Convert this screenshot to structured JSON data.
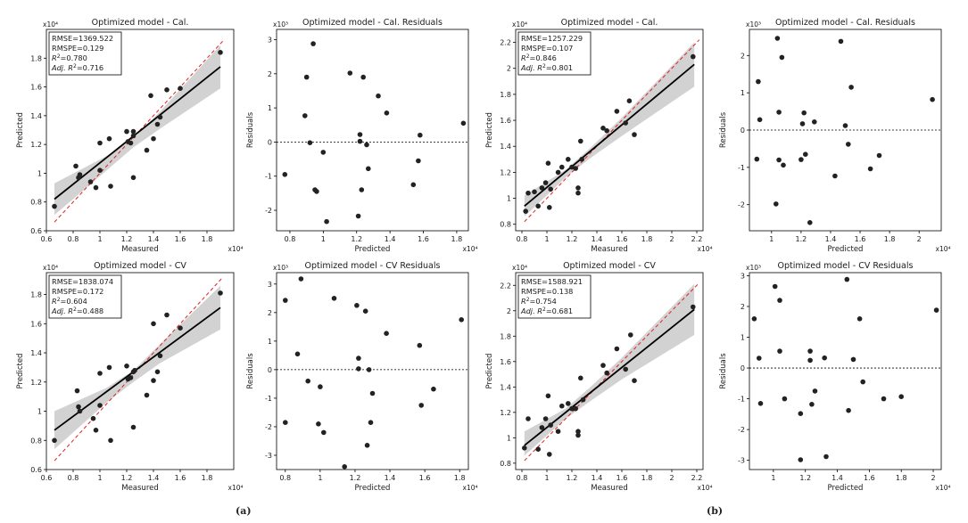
{
  "panel_labels": [
    "(a)",
    "(b)"
  ],
  "chart_data": [
    {
      "type": "scatter",
      "kind": "fit",
      "title": "Optimized model - Cal.",
      "xlabel": "Measured",
      "ylabel": "Predicted",
      "x_multiplier": "x10⁴",
      "y_multiplier": "x10⁴",
      "xlim": [
        0.6,
        2.0
      ],
      "ylim": [
        0.6,
        2.0
      ],
      "xticks": [
        0.6,
        0.8,
        1.0,
        1.2,
        1.4,
        1.6,
        1.8
      ],
      "yticks": [
        0.6,
        0.8,
        1.0,
        1.2,
        1.4,
        1.6,
        1.8
      ],
      "stats": [
        "RMSE=1369.522",
        "RMSPE=0.129",
        "R²=0.780",
        "Adj. R²=0.716"
      ],
      "fit_line": [
        [
          0.66,
          0.82
        ],
        [
          1.9,
          1.74
        ]
      ],
      "identity_line": [
        [
          0.66,
          0.66
        ],
        [
          1.92,
          1.92
        ]
      ],
      "band": {
        "x": [
          0.66,
          1.05,
          1.25,
          1.45,
          1.9
        ],
        "lower": [
          0.71,
          1.02,
          1.18,
          1.31,
          1.59
        ],
        "upper": [
          0.93,
          1.12,
          1.24,
          1.43,
          1.89
        ]
      },
      "points": [
        [
          0.66,
          0.77
        ],
        [
          0.82,
          1.05
        ],
        [
          0.84,
          0.97
        ],
        [
          0.85,
          0.99
        ],
        [
          0.93,
          0.94
        ],
        [
          0.97,
          0.9
        ],
        [
          1.0,
          1.02
        ],
        [
          1.0,
          1.21
        ],
        [
          1.07,
          1.24
        ],
        [
          1.08,
          0.91
        ],
        [
          1.2,
          1.29
        ],
        [
          1.21,
          1.22
        ],
        [
          1.23,
          1.21
        ],
        [
          1.25,
          0.97
        ],
        [
          1.25,
          1.26
        ],
        [
          1.25,
          1.29
        ],
        [
          1.35,
          1.16
        ],
        [
          1.38,
          1.54
        ],
        [
          1.4,
          1.24
        ],
        [
          1.43,
          1.34
        ],
        [
          1.45,
          1.39
        ],
        [
          1.5,
          1.58
        ],
        [
          1.6,
          1.59
        ],
        [
          1.9,
          1.84
        ]
      ]
    },
    {
      "type": "scatter",
      "kind": "residual",
      "title": "Optimized model - Cal. Residuals",
      "xlabel": "Predicted",
      "ylabel": "Residuals",
      "x_multiplier": "x10⁴",
      "y_multiplier": "x10³",
      "xlim": [
        0.72,
        1.87
      ],
      "ylim": [
        -2.6,
        3.3
      ],
      "xticks": [
        0.8,
        1.0,
        1.2,
        1.4,
        1.6,
        1.8
      ],
      "yticks": [
        -2,
        -1,
        0,
        1,
        2,
        3
      ],
      "points": [
        [
          0.77,
          -0.95
        ],
        [
          0.89,
          0.77
        ],
        [
          0.9,
          1.9
        ],
        [
          0.92,
          -0.02
        ],
        [
          0.94,
          2.88
        ],
        [
          0.95,
          -1.4
        ],
        [
          0.96,
          -1.45
        ],
        [
          1.0,
          -0.3
        ],
        [
          1.02,
          -2.33
        ],
        [
          1.16,
          2.02
        ],
        [
          1.21,
          -2.17
        ],
        [
          1.22,
          0.02
        ],
        [
          1.22,
          0.22
        ],
        [
          1.23,
          -1.4
        ],
        [
          1.24,
          1.9
        ],
        [
          1.26,
          -0.08
        ],
        [
          1.27,
          -0.78
        ],
        [
          1.33,
          1.35
        ],
        [
          1.38,
          0.85
        ],
        [
          1.54,
          -1.25
        ],
        [
          1.57,
          -0.55
        ],
        [
          1.58,
          0.2
        ],
        [
          1.84,
          0.55
        ]
      ]
    },
    {
      "type": "scatter",
      "kind": "fit",
      "title": "Optimized model - Cal.",
      "xlabel": "Measured",
      "ylabel": "Predicted",
      "x_multiplier": "x10⁴",
      "y_multiplier": "x10⁴",
      "xlim": [
        0.75,
        2.25
      ],
      "ylim": [
        0.75,
        2.3
      ],
      "xticks": [
        0.8,
        1.0,
        1.2,
        1.4,
        1.6,
        1.8,
        2.0,
        2.2
      ],
      "yticks": [
        0.8,
        1.0,
        1.2,
        1.4,
        1.6,
        1.8,
        2.0,
        2.2
      ],
      "stats": [
        "RMSE=1257.229",
        "RMSPE=0.107",
        "R²=0.846",
        "Adj. R²=0.801"
      ],
      "fit_line": [
        [
          0.82,
          0.94
        ],
        [
          2.18,
          2.03
        ]
      ],
      "identity_line": [
        [
          0.82,
          0.82
        ],
        [
          2.22,
          2.22
        ]
      ],
      "band": {
        "x": [
          0.82,
          1.15,
          1.35,
          1.6,
          2.18
        ],
        "lower": [
          0.86,
          1.16,
          1.31,
          1.48,
          1.86
        ],
        "upper": [
          1.02,
          1.22,
          1.39,
          1.62,
          2.2
        ]
      },
      "points": [
        [
          0.83,
          0.9
        ],
        [
          0.85,
          1.04
        ],
        [
          0.9,
          1.05
        ],
        [
          0.93,
          0.94
        ],
        [
          0.96,
          1.08
        ],
        [
          0.99,
          1.12
        ],
        [
          1.01,
          1.27
        ],
        [
          1.02,
          0.93
        ],
        [
          1.03,
          1.07
        ],
        [
          1.09,
          1.2
        ],
        [
          1.12,
          1.24
        ],
        [
          1.17,
          1.3
        ],
        [
          1.2,
          1.24
        ],
        [
          1.23,
          1.23
        ],
        [
          1.25,
          1.04
        ],
        [
          1.25,
          1.08
        ],
        [
          1.27,
          1.44
        ],
        [
          1.28,
          1.3
        ],
        [
          1.45,
          1.54
        ],
        [
          1.48,
          1.52
        ],
        [
          1.56,
          1.67
        ],
        [
          1.63,
          1.58
        ],
        [
          1.66,
          1.75
        ],
        [
          1.7,
          1.49
        ],
        [
          2.17,
          2.09
        ]
      ]
    },
    {
      "type": "scatter",
      "kind": "residual",
      "title": "Optimized model - Cal. Residuals",
      "xlabel": "Predicted",
      "ylabel": "Residuals",
      "x_multiplier": "x10⁴",
      "y_multiplier": "x10³",
      "xlim": [
        0.85,
        2.15
      ],
      "ylim": [
        -2.7,
        2.7
      ],
      "xticks": [
        1.0,
        1.2,
        1.4,
        1.6,
        1.8,
        2.0
      ],
      "yticks": [
        -2,
        -1,
        0,
        1,
        2
      ],
      "points": [
        [
          0.9,
          -0.78
        ],
        [
          0.91,
          1.3
        ],
        [
          0.92,
          0.28
        ],
        [
          1.03,
          -1.98
        ],
        [
          1.04,
          2.46
        ],
        [
          1.05,
          0.48
        ],
        [
          1.05,
          -0.8
        ],
        [
          1.07,
          1.95
        ],
        [
          1.08,
          -0.94
        ],
        [
          1.2,
          -0.79
        ],
        [
          1.21,
          0.17
        ],
        [
          1.22,
          0.46
        ],
        [
          1.23,
          -0.65
        ],
        [
          1.26,
          -2.48
        ],
        [
          1.29,
          0.22
        ],
        [
          1.43,
          -1.23
        ],
        [
          1.47,
          2.38
        ],
        [
          1.5,
          0.12
        ],
        [
          1.52,
          -0.38
        ],
        [
          1.54,
          1.15
        ],
        [
          1.67,
          -1.04
        ],
        [
          1.73,
          -0.68
        ],
        [
          2.09,
          0.82
        ]
      ]
    },
    {
      "type": "scatter",
      "kind": "fit",
      "title": "Optimized model - CV",
      "xlabel": "Measured",
      "ylabel": "Predicted",
      "x_multiplier": "x10⁴",
      "y_multiplier": "x10⁴",
      "xlim": [
        0.6,
        2.0
      ],
      "ylim": [
        0.6,
        1.95
      ],
      "xticks": [
        0.6,
        0.8,
        1.0,
        1.2,
        1.4,
        1.6,
        1.8
      ],
      "yticks": [
        0.6,
        0.8,
        1.0,
        1.2,
        1.4,
        1.6,
        1.8
      ],
      "stats": [
        "RMSE=1838.074",
        "RMSPE=0.172",
        "R²=0.604",
        "Adj. R²=0.488"
      ],
      "fit_line": [
        [
          0.66,
          0.87
        ],
        [
          1.9,
          1.71
        ]
      ],
      "identity_line": [
        [
          0.66,
          0.66
        ],
        [
          1.92,
          1.92
        ]
      ],
      "band": {
        "x": [
          0.66,
          1.05,
          1.25,
          1.45,
          1.9
        ],
        "lower": [
          0.74,
          1.06,
          1.2,
          1.33,
          1.56
        ],
        "upper": [
          1.0,
          1.16,
          1.28,
          1.46,
          1.86
        ]
      },
      "points": [
        [
          0.66,
          0.8
        ],
        [
          0.83,
          1.14
        ],
        [
          0.84,
          1.03
        ],
        [
          0.85,
          1.0
        ],
        [
          0.95,
          0.95
        ],
        [
          0.97,
          0.87
        ],
        [
          1.0,
          1.04
        ],
        [
          1.0,
          1.26
        ],
        [
          1.07,
          1.3
        ],
        [
          1.08,
          0.8
        ],
        [
          1.2,
          1.31
        ],
        [
          1.21,
          1.22
        ],
        [
          1.23,
          1.23
        ],
        [
          1.25,
          0.89
        ],
        [
          1.25,
          1.27
        ],
        [
          1.26,
          1.28
        ],
        [
          1.35,
          1.11
        ],
        [
          1.4,
          1.6
        ],
        [
          1.4,
          1.21
        ],
        [
          1.43,
          1.27
        ],
        [
          1.45,
          1.38
        ],
        [
          1.5,
          1.66
        ],
        [
          1.6,
          1.57
        ],
        [
          1.9,
          1.81
        ]
      ]
    },
    {
      "type": "scatter",
      "kind": "residual",
      "title": "Optimized model - CV Residuals",
      "xlabel": "Predicted",
      "ylabel": "Residuals",
      "x_multiplier": "x10⁴",
      "y_multiplier": "x10³",
      "xlim": [
        0.75,
        1.85
      ],
      "ylim": [
        -3.5,
        3.4
      ],
      "xticks": [
        0.8,
        1.0,
        1.2,
        1.4,
        1.6,
        1.8
      ],
      "yticks": [
        -3,
        -2,
        -1,
        0,
        1,
        2,
        3
      ],
      "points": [
        [
          0.8,
          2.43
        ],
        [
          0.8,
          -1.85
        ],
        [
          0.87,
          0.55
        ],
        [
          0.89,
          3.18
        ],
        [
          0.93,
          -0.4
        ],
        [
          0.99,
          -1.9
        ],
        [
          1.0,
          -0.6
        ],
        [
          1.02,
          -2.2
        ],
        [
          1.08,
          2.5
        ],
        [
          1.14,
          -3.4
        ],
        [
          1.21,
          2.25
        ],
        [
          1.22,
          0.4
        ],
        [
          1.22,
          0.03
        ],
        [
          1.26,
          2.05
        ],
        [
          1.27,
          -2.65
        ],
        [
          1.28,
          0.0
        ],
        [
          1.29,
          -1.85
        ],
        [
          1.3,
          -0.83
        ],
        [
          1.38,
          1.27
        ],
        [
          1.57,
          0.85
        ],
        [
          1.58,
          -1.25
        ],
        [
          1.65,
          -0.68
        ],
        [
          1.81,
          1.75
        ]
      ]
    },
    {
      "type": "scatter",
      "kind": "fit",
      "title": "Optimized model - CV",
      "xlabel": "Measured",
      "ylabel": "Predicted",
      "x_multiplier": "x10⁴",
      "y_multiplier": "x10⁴",
      "xlim": [
        0.75,
        2.25
      ],
      "ylim": [
        0.75,
        2.3
      ],
      "xticks": [
        0.8,
        1.0,
        1.2,
        1.4,
        1.6,
        1.8,
        2.0,
        2.2
      ],
      "yticks": [
        0.8,
        1.0,
        1.2,
        1.4,
        1.6,
        1.8,
        2.0,
        2.2
      ],
      "stats": [
        "RMSE=1588.921",
        "RMSPE=0.138",
        "R²=0.754",
        "Adj. R²=0.681"
      ],
      "fit_line": [
        [
          0.82,
          0.94
        ],
        [
          2.18,
          2.01
        ]
      ],
      "identity_line": [
        [
          0.82,
          0.82
        ],
        [
          2.22,
          2.22
        ]
      ],
      "band": {
        "x": [
          0.82,
          1.15,
          1.35,
          1.6,
          2.18
        ],
        "lower": [
          0.86,
          1.15,
          1.29,
          1.46,
          1.81
        ],
        "upper": [
          1.05,
          1.23,
          1.4,
          1.63,
          2.21
        ]
      },
      "points": [
        [
          0.82,
          0.92
        ],
        [
          0.85,
          1.15
        ],
        [
          0.93,
          0.91
        ],
        [
          0.96,
          1.08
        ],
        [
          0.99,
          1.15
        ],
        [
          1.01,
          1.33
        ],
        [
          1.02,
          0.87
        ],
        [
          1.03,
          1.1
        ],
        [
          1.09,
          1.05
        ],
        [
          1.12,
          1.25
        ],
        [
          1.17,
          1.27
        ],
        [
          1.2,
          1.23
        ],
        [
          1.23,
          1.23
        ],
        [
          1.25,
          1.02
        ],
        [
          1.25,
          1.05
        ],
        [
          1.27,
          1.47
        ],
        [
          1.29,
          1.3
        ],
        [
          1.45,
          1.57
        ],
        [
          1.48,
          1.51
        ],
        [
          1.56,
          1.7
        ],
        [
          1.63,
          1.54
        ],
        [
          1.67,
          1.81
        ],
        [
          1.7,
          1.45
        ],
        [
          2.17,
          2.03
        ]
      ]
    },
    {
      "type": "scatter",
      "kind": "residual",
      "title": "Optimized model - CV Residuals",
      "xlabel": "Predicted",
      "ylabel": "Residuals",
      "x_multiplier": "x10⁴",
      "y_multiplier": "x10³",
      "xlim": [
        0.85,
        2.05
      ],
      "ylim": [
        -3.3,
        3.1
      ],
      "xticks": [
        1.0,
        1.2,
        1.4,
        1.6,
        1.8,
        2.0
      ],
      "yticks": [
        -3,
        -2,
        -1,
        0,
        1,
        2,
        3
      ],
      "points": [
        [
          0.88,
          1.6
        ],
        [
          0.91,
          0.32
        ],
        [
          0.92,
          -1.15
        ],
        [
          1.01,
          2.65
        ],
        [
          1.04,
          2.2
        ],
        [
          1.04,
          0.55
        ],
        [
          1.07,
          -1.0
        ],
        [
          1.17,
          -1.48
        ],
        [
          1.17,
          -2.98
        ],
        [
          1.23,
          0.25
        ],
        [
          1.23,
          0.55
        ],
        [
          1.24,
          -1.18
        ],
        [
          1.26,
          -0.75
        ],
        [
          1.32,
          0.33
        ],
        [
          1.33,
          -2.88
        ],
        [
          1.46,
          2.88
        ],
        [
          1.47,
          -1.38
        ],
        [
          1.5,
          0.28
        ],
        [
          1.54,
          1.6
        ],
        [
          1.56,
          -0.45
        ],
        [
          1.69,
          -1.0
        ],
        [
          1.8,
          -0.93
        ],
        [
          2.02,
          1.88
        ]
      ]
    }
  ]
}
